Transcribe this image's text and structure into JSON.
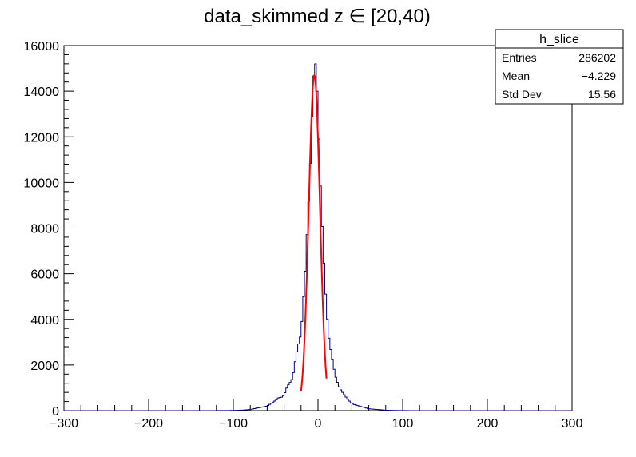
{
  "chart_data": {
    "type": "histogram",
    "title": "data_skimmed z  ∈ [20,40)",
    "xlabel": "",
    "ylabel": "",
    "xlim": [
      -300,
      300
    ],
    "ylim": [
      0,
      16000
    ],
    "grid": false,
    "x_ticks": [
      -300,
      -200,
      -100,
      0,
      100,
      200,
      300
    ],
    "x_tick_labels": [
      "−300",
      "−200",
      "−100",
      "0",
      "100",
      "200",
      "300"
    ],
    "y_ticks": [
      0,
      2000,
      4000,
      6000,
      8000,
      10000,
      12000,
      14000,
      16000
    ],
    "y_tick_labels": [
      "0",
      "2000",
      "4000",
      "6000",
      "8000",
      "10000",
      "12000",
      "14000",
      "16000"
    ],
    "histogram": {
      "name": "h_slice",
      "color": "#00008b",
      "bin_width": 2,
      "peak_center": -4,
      "peak_height": 15200,
      "approx_profile": {
        "x": [
          -80,
          -60,
          -40,
          -30,
          -20,
          -15,
          -10,
          -6,
          -4,
          -2,
          0,
          4,
          8,
          12,
          20,
          30,
          40,
          60,
          80
        ],
        "y": [
          50,
          200,
          700,
          1500,
          3500,
          6000,
          10000,
          14000,
          15200,
          14800,
          13000,
          9000,
          5500,
          3500,
          1500,
          700,
          300,
          80,
          20
        ]
      }
    },
    "fit": {
      "color": "#ff0000",
      "type": "gaussian",
      "range": [
        -20,
        10
      ],
      "mean": -4.3,
      "amplitude": 14700,
      "sigma": 6.6
    },
    "stats_box": {
      "title": "h_slice",
      "placement": "top-right",
      "rows": [
        {
          "label": "Entries",
          "value": "286202"
        },
        {
          "label": "Mean",
          "value": "−4.229"
        },
        {
          "label": "Std Dev",
          "value": "15.56"
        }
      ]
    }
  }
}
